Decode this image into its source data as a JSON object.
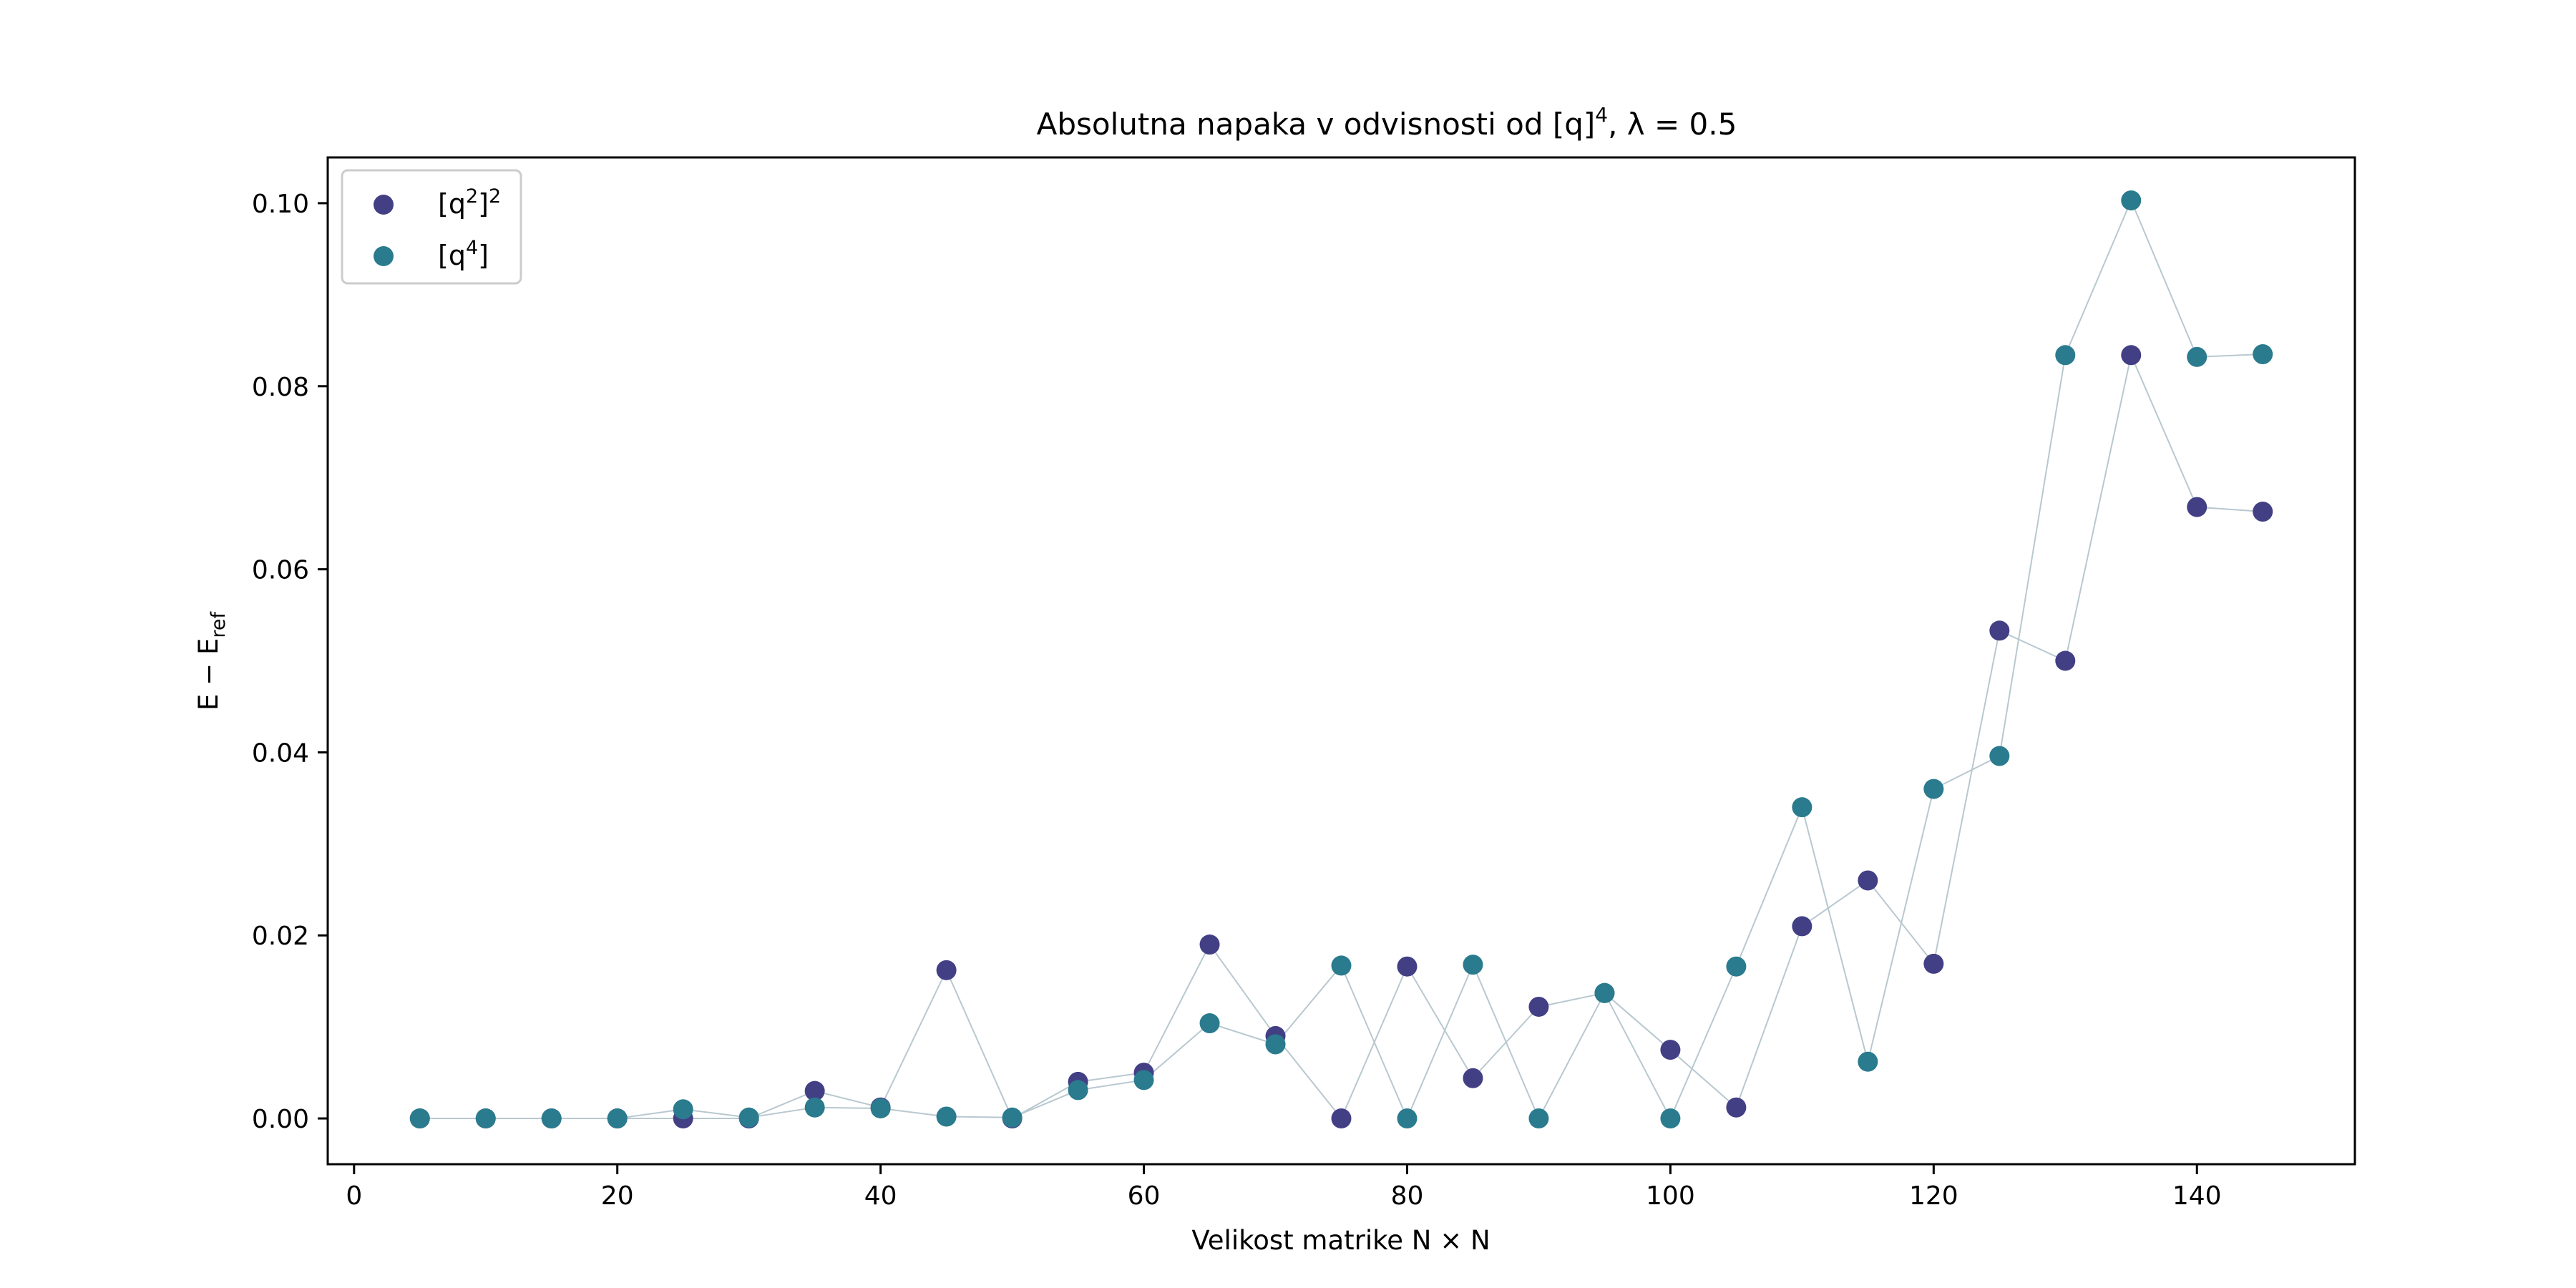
{
  "chart_data": {
    "type": "scatter",
    "title_main": "Absolutna napaka v odvisnosti od [q]",
    "title_exp": "4",
    "title_tail": ", λ = 0.5",
    "xlabel_main": "Velikost matrike N × N",
    "ylabel_main": "E − E",
    "ylabel_sub": "ref",
    "xlim": [
      -2,
      152
    ],
    "ylim": [
      -0.005,
      0.105
    ],
    "xticks": [
      "0",
      "20",
      "40",
      "60",
      "80",
      "100",
      "120",
      "140"
    ],
    "xtick_values": [
      0,
      20,
      40,
      60,
      80,
      100,
      120,
      140
    ],
    "yticks": [
      "0.00",
      "0.02",
      "0.04",
      "0.06",
      "0.08",
      "0.10"
    ],
    "ytick_values": [
      0,
      0.02,
      0.04,
      0.06,
      0.08,
      0.1
    ],
    "grid": false,
    "legend_position": "upper-left",
    "x": [
      5,
      10,
      15,
      20,
      25,
      30,
      35,
      40,
      45,
      50,
      55,
      60,
      65,
      70,
      75,
      80,
      85,
      90,
      95,
      100,
      105,
      110,
      115,
      120,
      125,
      130,
      135,
      140,
      145
    ],
    "series": [
      {
        "name": "[q²]²",
        "legend_base": "[q",
        "legend_sup1": "2",
        "legend_mid": "]",
        "legend_sup2": "2",
        "legend_end": "",
        "color": "#423f85",
        "values": [
          0.0,
          0.0,
          0.0,
          0.0,
          0.0,
          0.0,
          0.003,
          0.0012,
          0.0162,
          0.0,
          0.004,
          0.005,
          0.019,
          0.009,
          0.0,
          0.0166,
          0.0044,
          0.0122,
          0.0137,
          0.0075,
          0.0012,
          0.021,
          0.026,
          0.0169,
          0.0533,
          0.05,
          0.0834,
          0.0668,
          0.0663
        ]
      },
      {
        "name": "[q⁴]",
        "legend_base": "[q",
        "legend_sup1": "4",
        "legend_mid": "]",
        "legend_sup2": "",
        "legend_end": "",
        "color": "#2a7b8e",
        "values": [
          0.0,
          0.0,
          0.0,
          0.0,
          0.001,
          0.0001,
          0.0012,
          0.0011,
          0.0002,
          0.0001,
          0.0031,
          0.0042,
          0.0104,
          0.0081,
          0.0167,
          0.0,
          0.0168,
          0.0,
          0.0137,
          0.0,
          0.0166,
          0.034,
          0.0062,
          0.036,
          0.0396,
          0.0834,
          0.1003,
          0.0832,
          0.0835
        ]
      }
    ],
    "line_color": "#b8c8d0"
  }
}
